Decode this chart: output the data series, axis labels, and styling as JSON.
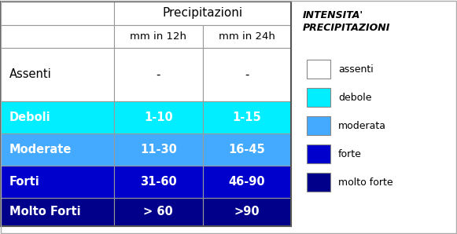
{
  "table_rows": [
    {
      "label": "Assenti",
      "col1": "-",
      "col2": "-",
      "row_color": "#ffffff",
      "text_color": "#000000",
      "bold": false
    },
    {
      "label": "Deboli",
      "col1": "1-10",
      "col2": "1-15",
      "row_color": "#00EEFF",
      "text_color": "#ffffff",
      "bold": true
    },
    {
      "label": "Moderate",
      "col1": "11-30",
      "col2": "16-45",
      "row_color": "#44AAFF",
      "text_color": "#ffffff",
      "bold": true
    },
    {
      "label": "Forti",
      "col1": "31-60",
      "col2": "46-90",
      "row_color": "#0000CC",
      "text_color": "#ffffff",
      "bold": true
    },
    {
      "label": "Molto Forti",
      "col1": "> 60",
      "col2": ">90",
      "row_color": "#00008B",
      "text_color": "#ffffff",
      "bold": true
    }
  ],
  "header_text": "Precipitazioni",
  "subheader_col1": "mm in 12h",
  "subheader_col2": "mm in 24h",
  "legend_title": "INTENSITA'\nPRECIPITAZIONI",
  "legend_items": [
    {
      "label": "assenti",
      "color": "#ffffff",
      "edge": "#888888"
    },
    {
      "label": "debole",
      "color": "#00EEFF",
      "edge": "#888888"
    },
    {
      "label": "moderata",
      "color": "#44AAFF",
      "edge": "#888888"
    },
    {
      "label": "forte",
      "color": "#0000CC",
      "edge": "#888888"
    },
    {
      "label": "molto forte",
      "color": "#00008B",
      "edge": "#888888"
    }
  ],
  "border_color": "#999999",
  "fig_width": 5.81,
  "fig_height": 2.98,
  "dpi": 100
}
